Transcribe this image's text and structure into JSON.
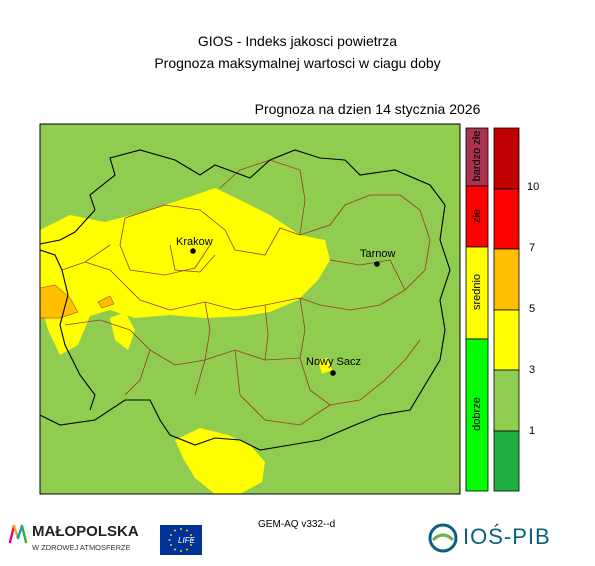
{
  "title": "GIOS - Indeks jakosci powietrza",
  "subtitle": "Prognoza maksymalnej wartosci w ciagu doby",
  "forecast_date": "Prognoza na dzien  14 stycznia 2026",
  "cities": [
    {
      "name": "Krakow"
    },
    {
      "name": "Tarnow"
    },
    {
      "name": "Nowy Sacz"
    }
  ],
  "legend": {
    "categories": [
      {
        "label": "bardzo złe",
        "color": "#a8344e"
      },
      {
        "label": "złe",
        "color": "#ff0000"
      },
      {
        "label": "srednio",
        "color": "#ffff00"
      },
      {
        "label": "dobrze",
        "color": "#00ff00"
      }
    ],
    "scale_colors": [
      "#c00000",
      "#ff0000",
      "#ffbf00",
      "#ffff00",
      "#8fcc50",
      "#1fb040"
    ],
    "ticks": [
      "10",
      "7",
      "5",
      "3",
      "1"
    ]
  },
  "model": "GEM-AQ v332--d",
  "logos": {
    "malopolska_name": "MAŁOPOLSKA",
    "malopolska_tagline": "W ZDROWEJ ATMOSFERZE",
    "eu_life": "LIFE",
    "iospib": "IOŚ-PIB"
  }
}
